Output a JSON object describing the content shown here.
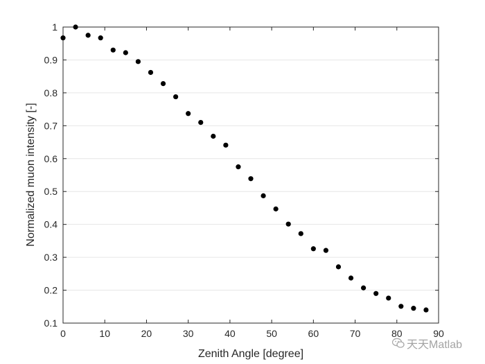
{
  "chart_data": {
    "type": "scatter",
    "title": "",
    "xlabel": "Zenith Angle [degree]",
    "ylabel": "Normalized muon intensity [-]",
    "xlim": [
      0,
      90
    ],
    "ylim": [
      0.1,
      1
    ],
    "xticks": [
      "0",
      "10",
      "20",
      "30",
      "40",
      "50",
      "60",
      "70",
      "80",
      "90"
    ],
    "yticks": [
      "0.1",
      "0.2",
      "0.3",
      "0.4",
      "0.5",
      "0.6",
      "0.7",
      "0.8",
      "0.9",
      "1"
    ],
    "grid": "horizontal",
    "marker_color": "#000000",
    "series": [
      {
        "x": [
          0,
          3,
          6,
          9,
          12,
          15,
          18,
          21,
          24,
          27,
          30,
          33,
          36,
          39,
          42,
          45,
          48,
          51,
          54,
          57,
          60,
          63,
          66,
          69,
          72,
          75,
          78,
          81,
          84,
          87
        ],
        "y": [
          0.967,
          1.0,
          0.975,
          0.967,
          0.93,
          0.922,
          0.895,
          0.862,
          0.828,
          0.788,
          0.737,
          0.71,
          0.668,
          0.641,
          0.575,
          0.539,
          0.487,
          0.447,
          0.401,
          0.372,
          0.326,
          0.321,
          0.271,
          0.237,
          0.207,
          0.19,
          0.176,
          0.151,
          0.145,
          0.14
        ]
      }
    ]
  },
  "watermark": {
    "text": "天天Matlab",
    "icon": "wechat-bubble-icon"
  }
}
